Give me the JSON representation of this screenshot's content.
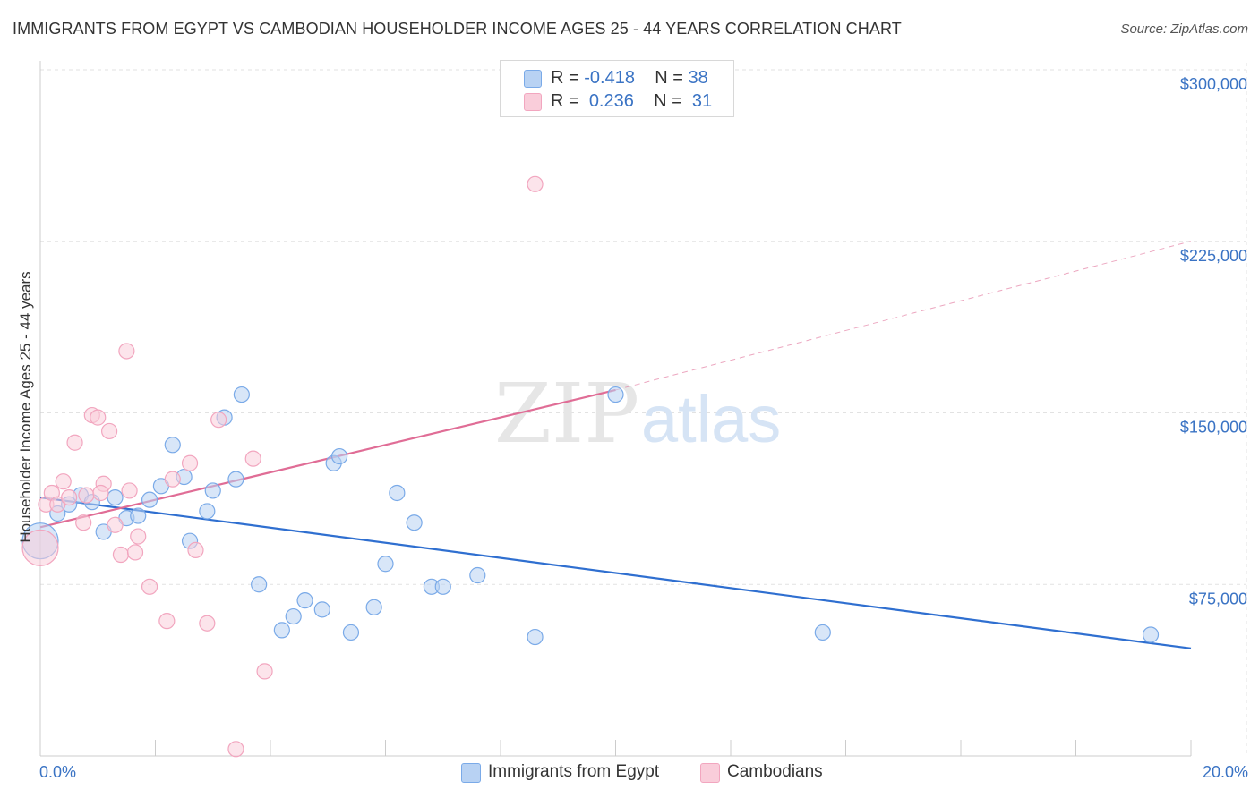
{
  "title": "IMMIGRANTS FROM EGYPT VS CAMBODIAN HOUSEHOLDER INCOME AGES 25 - 44 YEARS CORRELATION CHART",
  "source": "Source: ZipAtlas.com",
  "watermark": {
    "zip": "ZIP",
    "atlas": "atlas"
  },
  "legend": {
    "rows": [
      {
        "r_label": "R =",
        "r_value": "-0.418",
        "n_label": "N =",
        "n_value": "38"
      },
      {
        "r_label": "R =",
        "r_value": "0.236",
        "n_label": "N =",
        "n_value": "31"
      }
    ]
  },
  "chart_data": {
    "type": "scatter",
    "ylabel": "Householder Income Ages 25 - 44 years",
    "xlabel": "",
    "xlim": [
      0,
      20
    ],
    "ylim": [
      0,
      300000
    ],
    "x_tick_labels": [
      "0.0%",
      "20.0%"
    ],
    "y_ticks": [
      75000,
      150000,
      225000,
      300000
    ],
    "y_tick_labels": [
      "$75,000",
      "$150,000",
      "$225,000",
      "$300,000"
    ],
    "grid": true,
    "legend_position": "top-center",
    "series": [
      {
        "name": "Immigrants from Egypt",
        "color": "#7aaae8",
        "fill": "#b8d2f3",
        "trend": {
          "x": [
            0,
            20
          ],
          "y": [
            113000,
            47000
          ],
          "color": "#2f6fd0",
          "dashed_extension": false
        },
        "points": [
          {
            "x": 0.0,
            "y": 94000,
            "big": true
          },
          {
            "x": 0.3,
            "y": 106000
          },
          {
            "x": 0.5,
            "y": 110000
          },
          {
            "x": 0.7,
            "y": 114000
          },
          {
            "x": 0.9,
            "y": 111000
          },
          {
            "x": 1.1,
            "y": 98000
          },
          {
            "x": 1.3,
            "y": 113000
          },
          {
            "x": 1.5,
            "y": 104000
          },
          {
            "x": 1.7,
            "y": 105000
          },
          {
            "x": 1.9,
            "y": 112000
          },
          {
            "x": 2.1,
            "y": 118000
          },
          {
            "x": 2.3,
            "y": 136000
          },
          {
            "x": 2.5,
            "y": 122000
          },
          {
            "x": 2.6,
            "y": 94000
          },
          {
            "x": 2.9,
            "y": 107000
          },
          {
            "x": 3.0,
            "y": 116000
          },
          {
            "x": 3.2,
            "y": 148000
          },
          {
            "x": 3.4,
            "y": 121000
          },
          {
            "x": 3.5,
            "y": 158000
          },
          {
            "x": 3.8,
            "y": 75000
          },
          {
            "x": 4.2,
            "y": 55000
          },
          {
            "x": 4.4,
            "y": 61000
          },
          {
            "x": 4.6,
            "y": 68000
          },
          {
            "x": 4.9,
            "y": 64000
          },
          {
            "x": 5.1,
            "y": 128000
          },
          {
            "x": 5.2,
            "y": 131000
          },
          {
            "x": 5.4,
            "y": 54000
          },
          {
            "x": 5.8,
            "y": 65000
          },
          {
            "x": 6.0,
            "y": 84000
          },
          {
            "x": 6.2,
            "y": 115000
          },
          {
            "x": 6.5,
            "y": 102000
          },
          {
            "x": 6.8,
            "y": 74000
          },
          {
            "x": 7.0,
            "y": 74000
          },
          {
            "x": 7.6,
            "y": 79000
          },
          {
            "x": 8.6,
            "y": 52000
          },
          {
            "x": 10.0,
            "y": 158000
          },
          {
            "x": 13.6,
            "y": 54000
          },
          {
            "x": 19.3,
            "y": 53000
          }
        ]
      },
      {
        "name": "Cambodians",
        "color": "#f2a6bf",
        "fill": "#f9cdda",
        "trend": {
          "x": [
            0,
            10
          ],
          "y": [
            100000,
            160000
          ],
          "extend_to_x": 20,
          "extend_to_y": 225000,
          "color": "#e06d96",
          "dashed_extension": true
        },
        "points": [
          {
            "x": 0.0,
            "y": 91000,
            "big": true
          },
          {
            "x": 0.1,
            "y": 110000
          },
          {
            "x": 0.2,
            "y": 115000
          },
          {
            "x": 0.3,
            "y": 110000
          },
          {
            "x": 0.4,
            "y": 120000
          },
          {
            "x": 0.5,
            "y": 113000
          },
          {
            "x": 0.6,
            "y": 137000
          },
          {
            "x": 0.75,
            "y": 102000
          },
          {
            "x": 0.8,
            "y": 114000
          },
          {
            "x": 0.9,
            "y": 149000
          },
          {
            "x": 1.0,
            "y": 148000
          },
          {
            "x": 1.1,
            "y": 119000
          },
          {
            "x": 1.2,
            "y": 142000
          },
          {
            "x": 1.3,
            "y": 101000
          },
          {
            "x": 1.4,
            "y": 88000
          },
          {
            "x": 1.5,
            "y": 177000
          },
          {
            "x": 1.55,
            "y": 116000
          },
          {
            "x": 1.65,
            "y": 89000
          },
          {
            "x": 1.7,
            "y": 96000
          },
          {
            "x": 1.9,
            "y": 74000
          },
          {
            "x": 2.2,
            "y": 59000
          },
          {
            "x": 2.3,
            "y": 121000
          },
          {
            "x": 2.6,
            "y": 128000
          },
          {
            "x": 2.7,
            "y": 90000
          },
          {
            "x": 2.9,
            "y": 58000
          },
          {
            "x": 3.1,
            "y": 147000
          },
          {
            "x": 3.4,
            "y": 3000
          },
          {
            "x": 3.7,
            "y": 130000
          },
          {
            "x": 3.9,
            "y": 37000
          },
          {
            "x": 8.6,
            "y": 250000
          },
          {
            "x": 1.05,
            "y": 115000
          }
        ]
      }
    ]
  }
}
